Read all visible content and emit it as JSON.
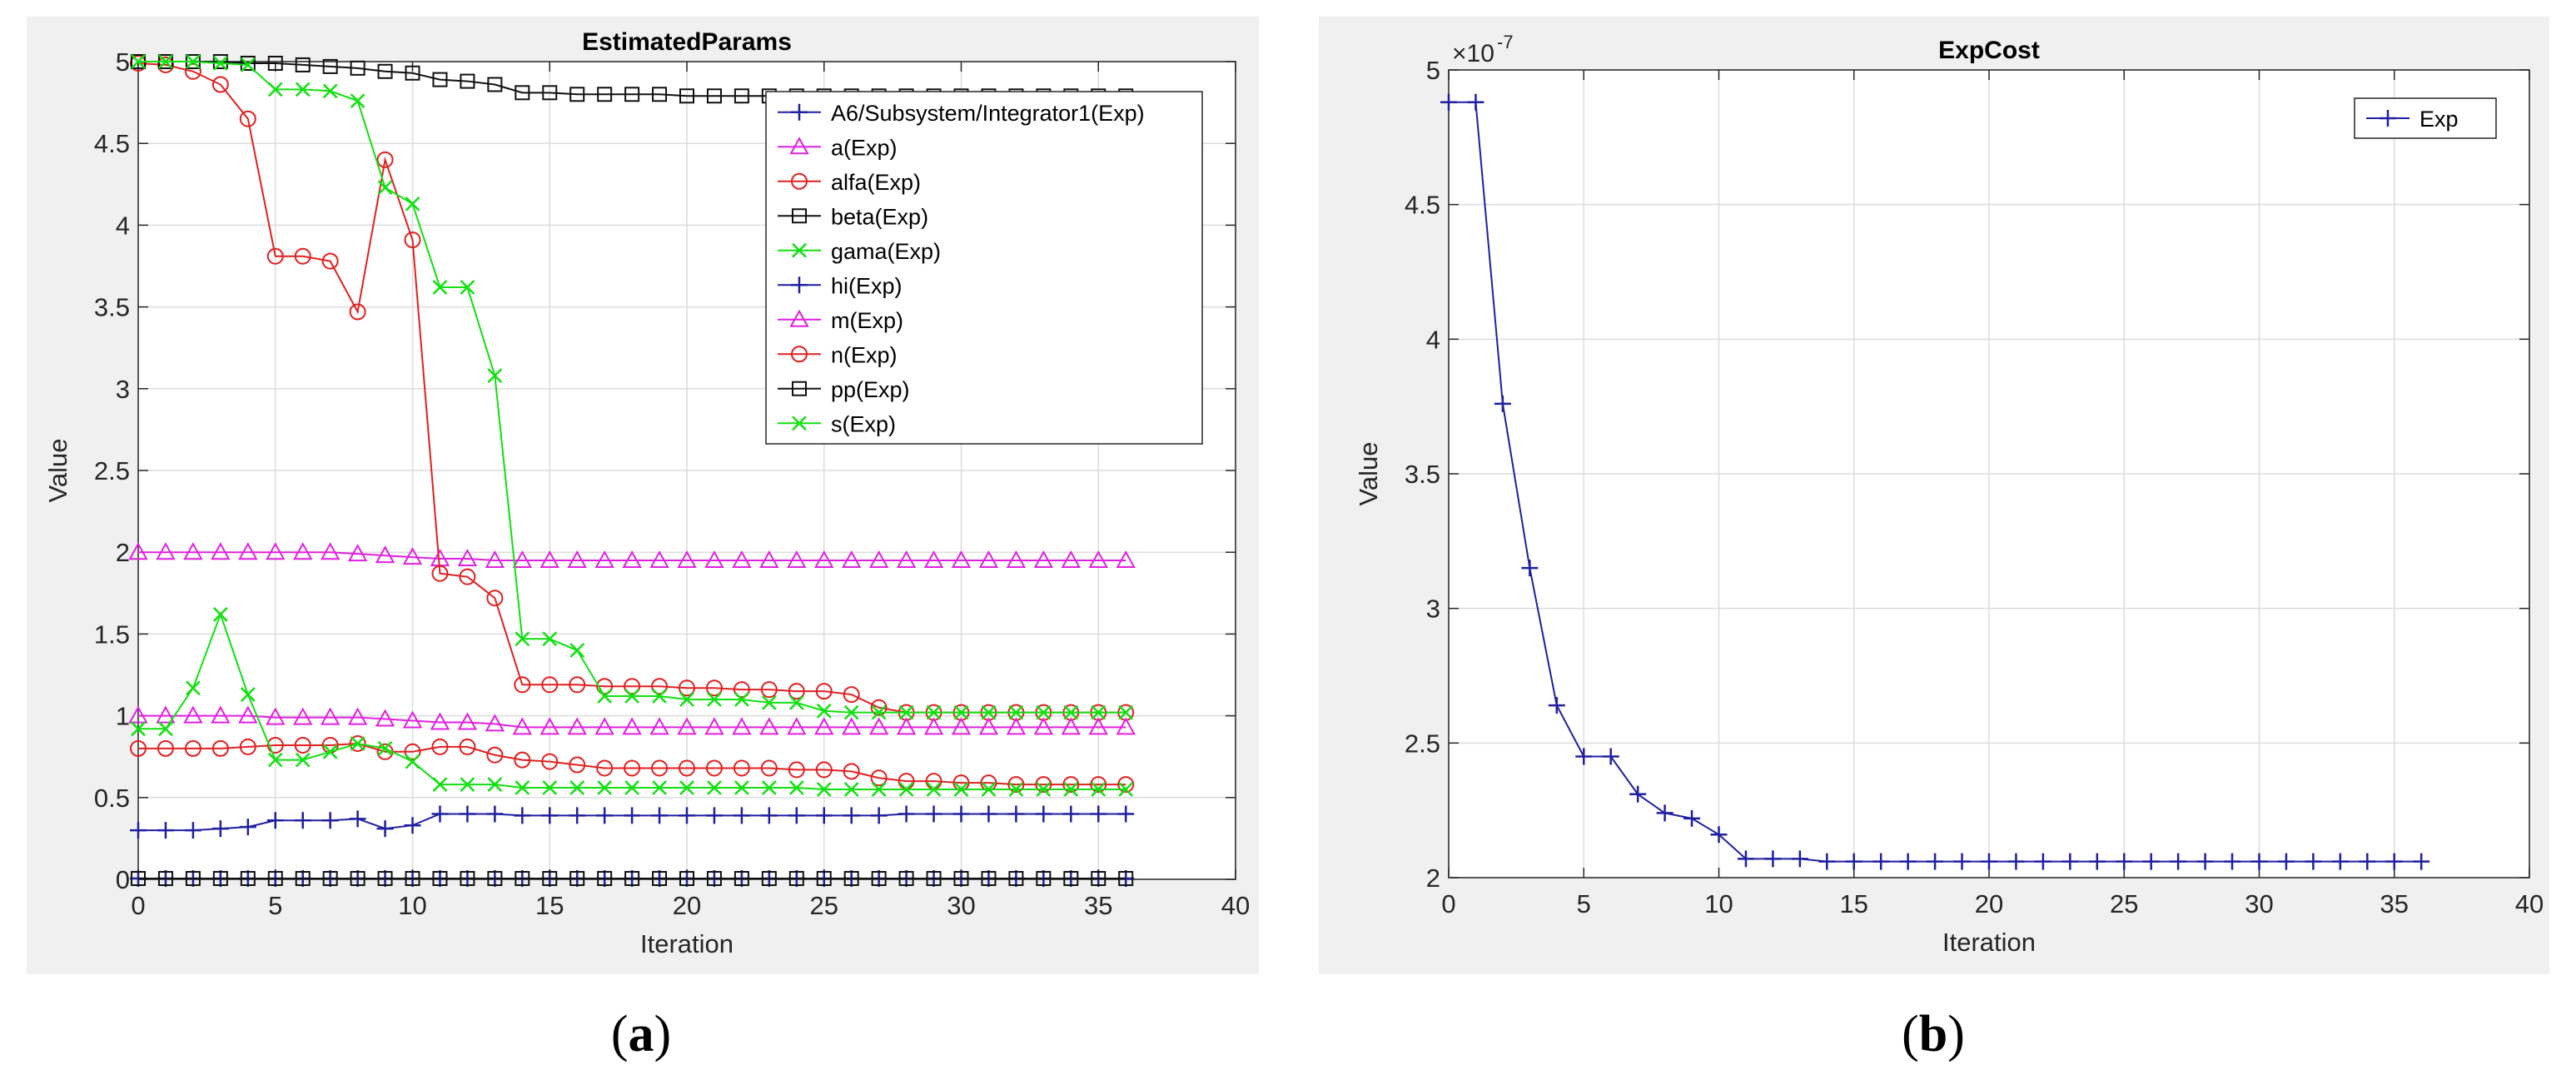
{
  "chart_data": [
    {
      "id": "a",
      "type": "line",
      "title": "EstimatedParams",
      "xlabel": "Iteration",
      "ylabel": "Value",
      "xlim": [
        0,
        40
      ],
      "ylim": [
        0,
        5
      ],
      "xticks": [
        0,
        5,
        10,
        15,
        20,
        25,
        30,
        35,
        40
      ],
      "yticks": [
        0,
        0.5,
        1,
        1.5,
        2,
        2.5,
        3,
        3.5,
        4,
        4.5,
        5
      ],
      "grid": true,
      "legend_position": "top-right",
      "x": [
        0,
        1,
        2,
        3,
        4,
        5,
        6,
        7,
        8,
        9,
        10,
        11,
        12,
        13,
        14,
        15,
        16,
        17,
        18,
        19,
        20,
        21,
        22,
        23,
        24,
        25,
        26,
        27,
        28,
        29,
        30,
        31,
        32,
        33,
        34,
        35,
        36
      ],
      "series": [
        {
          "name": "A6/Subsystem/Integrator1(Exp)",
          "color": "#1f1fa0",
          "marker": "plus",
          "values": [
            0.005,
            0.005,
            0.005,
            0.005,
            0.005,
            0.005,
            0.005,
            0.005,
            0.005,
            0.005,
            0.005,
            0.005,
            0.005,
            0.005,
            0.005,
            0.005,
            0.005,
            0.005,
            0.005,
            0.005,
            0.005,
            0.005,
            0.005,
            0.005,
            0.005,
            0.005,
            0.005,
            0.005,
            0.005,
            0.005,
            0.005,
            0.005,
            0.005,
            0.005,
            0.005,
            0.005,
            0.005
          ]
        },
        {
          "name": "a(Exp)",
          "color": "#e020e0",
          "marker": "triangle",
          "values": [
            2.0,
            2.0,
            2.0,
            2.0,
            2.0,
            2.0,
            2.0,
            2.0,
            1.99,
            1.98,
            1.97,
            1.96,
            1.96,
            1.95,
            1.95,
            1.95,
            1.95,
            1.95,
            1.95,
            1.95,
            1.95,
            1.95,
            1.95,
            1.95,
            1.95,
            1.95,
            1.95,
            1.95,
            1.95,
            1.95,
            1.95,
            1.95,
            1.95,
            1.95,
            1.95,
            1.95,
            1.95
          ]
        },
        {
          "name": "alfa(Exp)",
          "color": "#e02020",
          "marker": "circle",
          "values": [
            4.99,
            4.98,
            4.94,
            4.86,
            4.65,
            3.81,
            3.81,
            3.78,
            3.47,
            4.4,
            3.91,
            1.87,
            1.85,
            1.72,
            1.19,
            1.19,
            1.19,
            1.18,
            1.18,
            1.18,
            1.17,
            1.17,
            1.16,
            1.16,
            1.15,
            1.15,
            1.13,
            1.05,
            1.02,
            1.02,
            1.02,
            1.02,
            1.02,
            1.02,
            1.02,
            1.02,
            1.02
          ]
        },
        {
          "name": "beta(Exp)",
          "color": "#101010",
          "marker": "square",
          "values": [
            5.0,
            5.0,
            5.0,
            5.0,
            4.99,
            4.99,
            4.98,
            4.97,
            4.96,
            4.94,
            4.93,
            4.89,
            4.88,
            4.86,
            4.81,
            4.81,
            4.8,
            4.8,
            4.8,
            4.8,
            4.79,
            4.79,
            4.79,
            4.79,
            4.79,
            4.79,
            4.79,
            4.79,
            4.79,
            4.79,
            4.79,
            4.79,
            4.79,
            4.79,
            4.79,
            4.79,
            4.79
          ]
        },
        {
          "name": "gama(Exp)",
          "color": "#10e010",
          "marker": "x",
          "values": [
            5.0,
            5.0,
            5.0,
            4.99,
            4.98,
            4.83,
            4.83,
            4.82,
            4.76,
            4.23,
            4.13,
            3.62,
            3.62,
            3.08,
            1.47,
            1.47,
            1.4,
            1.12,
            1.12,
            1.12,
            1.1,
            1.1,
            1.1,
            1.08,
            1.08,
            1.03,
            1.02,
            1.02,
            1.02,
            1.02,
            1.02,
            1.02,
            1.02,
            1.02,
            1.02,
            1.02,
            1.02
          ]
        },
        {
          "name": "hi(Exp)",
          "color": "#1f1fa0",
          "marker": "plus",
          "values": [
            0.3,
            0.3,
            0.3,
            0.31,
            0.32,
            0.36,
            0.36,
            0.36,
            0.37,
            0.31,
            0.33,
            0.4,
            0.4,
            0.4,
            0.39,
            0.39,
            0.39,
            0.39,
            0.39,
            0.39,
            0.39,
            0.39,
            0.39,
            0.39,
            0.39,
            0.39,
            0.39,
            0.39,
            0.4,
            0.4,
            0.4,
            0.4,
            0.4,
            0.4,
            0.4,
            0.4,
            0.4
          ]
        },
        {
          "name": "m(Exp)",
          "color": "#e020e0",
          "marker": "triangle",
          "values": [
            1.0,
            1.0,
            1.0,
            1.0,
            1.0,
            0.99,
            0.99,
            0.99,
            0.99,
            0.98,
            0.97,
            0.96,
            0.96,
            0.95,
            0.93,
            0.93,
            0.93,
            0.93,
            0.93,
            0.93,
            0.93,
            0.93,
            0.93,
            0.93,
            0.93,
            0.93,
            0.93,
            0.93,
            0.93,
            0.93,
            0.93,
            0.93,
            0.93,
            0.93,
            0.93,
            0.93,
            0.93
          ]
        },
        {
          "name": "n(Exp)",
          "color": "#e02020",
          "marker": "circle",
          "values": [
            0.8,
            0.8,
            0.8,
            0.8,
            0.81,
            0.82,
            0.82,
            0.82,
            0.83,
            0.78,
            0.78,
            0.81,
            0.81,
            0.76,
            0.73,
            0.72,
            0.7,
            0.68,
            0.68,
            0.68,
            0.68,
            0.68,
            0.68,
            0.68,
            0.67,
            0.67,
            0.66,
            0.62,
            0.6,
            0.6,
            0.59,
            0.59,
            0.58,
            0.58,
            0.58,
            0.58,
            0.58
          ]
        },
        {
          "name": "pp(Exp)",
          "color": "#101010",
          "marker": "square",
          "values": [
            0.005,
            0.005,
            0.005,
            0.005,
            0.005,
            0.005,
            0.005,
            0.005,
            0.005,
            0.005,
            0.005,
            0.005,
            0.005,
            0.005,
            0.005,
            0.005,
            0.005,
            0.005,
            0.005,
            0.005,
            0.005,
            0.005,
            0.005,
            0.005,
            0.005,
            0.005,
            0.005,
            0.005,
            0.005,
            0.005,
            0.005,
            0.005,
            0.005,
            0.005,
            0.005,
            0.005,
            0.005
          ]
        },
        {
          "name": "s(Exp)",
          "color": "#10e010",
          "marker": "x",
          "values": [
            0.92,
            0.92,
            1.17,
            1.62,
            1.13,
            0.73,
            0.73,
            0.78,
            0.83,
            0.8,
            0.72,
            0.58,
            0.58,
            0.58,
            0.56,
            0.56,
            0.56,
            0.56,
            0.56,
            0.56,
            0.56,
            0.56,
            0.56,
            0.56,
            0.56,
            0.55,
            0.55,
            0.55,
            0.55,
            0.55,
            0.55,
            0.55,
            0.55,
            0.55,
            0.55,
            0.55,
            0.55
          ]
        }
      ]
    },
    {
      "id": "b",
      "type": "line",
      "title": "ExpCost",
      "exponent_label": "×10",
      "exponent_power": "-7",
      "xlabel": "Iteration",
      "ylabel": "Value",
      "xlim": [
        0,
        40
      ],
      "ylim": [
        2,
        5
      ],
      "xticks": [
        0,
        5,
        10,
        15,
        20,
        25,
        30,
        35,
        40
      ],
      "yticks": [
        2,
        2.5,
        3,
        3.5,
        4,
        4.5,
        5
      ],
      "grid": true,
      "legend_position": "top-right",
      "x": [
        0,
        1,
        2,
        3,
        4,
        5,
        6,
        7,
        8,
        9,
        10,
        11,
        12,
        13,
        14,
        15,
        16,
        17,
        18,
        19,
        20,
        21,
        22,
        23,
        24,
        25,
        26,
        27,
        28,
        29,
        30,
        31,
        32,
        33,
        34,
        35,
        36
      ],
      "series": [
        {
          "name": "Exp",
          "color": "#1f1fa0",
          "marker": "plus",
          "values": [
            4.88,
            4.88,
            3.76,
            3.15,
            2.64,
            2.45,
            2.45,
            2.31,
            2.24,
            2.22,
            2.16,
            2.07,
            2.07,
            2.07,
            2.06,
            2.06,
            2.06,
            2.06,
            2.06,
            2.06,
            2.06,
            2.06,
            2.06,
            2.06,
            2.06,
            2.06,
            2.06,
            2.06,
            2.06,
            2.06,
            2.06,
            2.06,
            2.06,
            2.06,
            2.06,
            2.06,
            2.06
          ]
        }
      ]
    }
  ],
  "panels": [
    {
      "label": "(",
      "letter": "a",
      "close": ")"
    },
    {
      "label": "(",
      "letter": "b",
      "close": ")"
    }
  ]
}
